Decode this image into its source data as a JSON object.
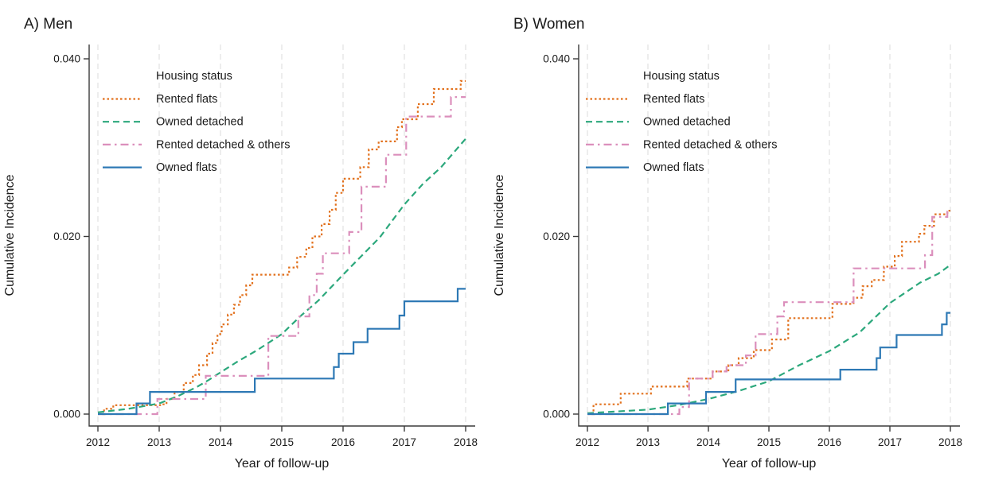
{
  "figure": {
    "background": "#ffffff",
    "axis_color": "#3a3a3a",
    "grid_color": "#e3e3e3",
    "text_color": "#1a1a1a"
  },
  "chart_data": [
    {
      "type": "line",
      "title": "A) Men",
      "xlabel": "Year of follow-up",
      "ylabel": "Cumulative Incidence",
      "xlim": [
        2012,
        2018
      ],
      "ylim": [
        0,
        0.04
      ],
      "x_ticks": [
        2012,
        2013,
        2014,
        2015,
        2016,
        2017,
        2018
      ],
      "y_tick_values": [
        0,
        0.02,
        0.04
      ],
      "y_tick_labels": [
        "0.000",
        "0.020",
        "0.040"
      ],
      "grid": "vertical-dashed",
      "legend_title": "Housing status",
      "legend_position": "upper-left-inside",
      "series": [
        {
          "name": "Rented flats",
          "color": "#E2711D",
          "dash": "dotted",
          "step": true,
          "points": [
            [
              2012,
              0
            ],
            [
              2012.1,
              0.0006
            ],
            [
              2012.25,
              0.001
            ],
            [
              2013.05,
              0.0011
            ],
            [
              2013.12,
              0.0017
            ],
            [
              2013.25,
              0.0025
            ],
            [
              2013.4,
              0.0035
            ],
            [
              2013.55,
              0.0044
            ],
            [
              2013.65,
              0.0055
            ],
            [
              2013.78,
              0.0068
            ],
            [
              2013.87,
              0.008
            ],
            [
              2013.95,
              0.009
            ],
            [
              2014.02,
              0.0101
            ],
            [
              2014.12,
              0.0112
            ],
            [
              2014.22,
              0.0123
            ],
            [
              2014.32,
              0.0134
            ],
            [
              2014.42,
              0.0145
            ],
            [
              2014.52,
              0.0157
            ],
            [
              2015.12,
              0.0165
            ],
            [
              2015.25,
              0.0177
            ],
            [
              2015.4,
              0.0187
            ],
            [
              2015.5,
              0.02
            ],
            [
              2015.65,
              0.0214
            ],
            [
              2015.78,
              0.023
            ],
            [
              2015.88,
              0.0249
            ],
            [
              2016.0,
              0.0265
            ],
            [
              2016.28,
              0.0278
            ],
            [
              2016.42,
              0.0298
            ],
            [
              2016.58,
              0.0307
            ],
            [
              2016.88,
              0.0323
            ],
            [
              2016.96,
              0.0332
            ],
            [
              2017.22,
              0.0349
            ],
            [
              2017.48,
              0.0366
            ],
            [
              2017.92,
              0.0375
            ],
            [
              2018,
              0.0375
            ]
          ]
        },
        {
          "name": "Owned detached",
          "color": "#2CA87C",
          "dash": "dashed",
          "step": false,
          "points": [
            [
              2012,
              0.0002
            ],
            [
              2012.5,
              0.0006
            ],
            [
              2013,
              0.0012
            ],
            [
              2013.3,
              0.002
            ],
            [
              2013.6,
              0.003
            ],
            [
              2013.8,
              0.0038
            ],
            [
              2014,
              0.0047
            ],
            [
              2014.3,
              0.006
            ],
            [
              2014.6,
              0.0072
            ],
            [
              2015,
              0.009
            ],
            [
              2015.3,
              0.011
            ],
            [
              2015.6,
              0.0128
            ],
            [
              2016,
              0.0157
            ],
            [
              2016.3,
              0.0178
            ],
            [
              2016.6,
              0.0199
            ],
            [
              2017,
              0.0236
            ],
            [
              2017.3,
              0.0259
            ],
            [
              2017.6,
              0.0278
            ],
            [
              2018,
              0.031
            ]
          ]
        },
        {
          "name": "Rented detached & others",
          "color": "#DB8FBC",
          "dash": "dashdot",
          "step": true,
          "points": [
            [
              2012,
              0
            ],
            [
              2012.97,
              0.0017
            ],
            [
              2013.76,
              0.0043
            ],
            [
              2014.78,
              0.0088
            ],
            [
              2015.27,
              0.011
            ],
            [
              2015.45,
              0.0134
            ],
            [
              2015.57,
              0.0158
            ],
            [
              2015.67,
              0.0181
            ],
            [
              2016.1,
              0.0205
            ],
            [
              2016.3,
              0.0256
            ],
            [
              2016.7,
              0.0292
            ],
            [
              2017.03,
              0.0335
            ],
            [
              2017.76,
              0.0357
            ],
            [
              2018,
              0.0357
            ]
          ]
        },
        {
          "name": "Owned flats",
          "color": "#2E79B5",
          "dash": "solid",
          "step": true,
          "points": [
            [
              2012,
              0
            ],
            [
              2012.63,
              0.0012
            ],
            [
              2012.85,
              0.0025
            ],
            [
              2014.56,
              0.004
            ],
            [
              2015.85,
              0.0053
            ],
            [
              2015.93,
              0.0068
            ],
            [
              2016.17,
              0.0081
            ],
            [
              2016.4,
              0.0096
            ],
            [
              2016.92,
              0.0111
            ],
            [
              2017.0,
              0.0127
            ],
            [
              2017.87,
              0.0141
            ],
            [
              2018,
              0.0141
            ]
          ]
        }
      ]
    },
    {
      "type": "line",
      "title": "B) Women",
      "xlabel": "Year of follow-up",
      "ylabel": "Cumulative Incidence",
      "xlim": [
        2012,
        2018
      ],
      "ylim": [
        0,
        0.04
      ],
      "x_ticks": [
        2012,
        2013,
        2014,
        2015,
        2016,
        2017,
        2018
      ],
      "y_tick_values": [
        0,
        0.02,
        0.04
      ],
      "y_tick_labels": [
        "0.000",
        "0.020",
        "0.040"
      ],
      "grid": "vertical-dashed",
      "legend_title": "Housing status",
      "legend_position": "upper-left-inside",
      "series": [
        {
          "name": "Rented flats",
          "color": "#E2711D",
          "dash": "dotted",
          "step": true,
          "points": [
            [
              2012,
              0
            ],
            [
              2012.1,
              0.0011
            ],
            [
              2012.55,
              0.0023
            ],
            [
              2013.05,
              0.0031
            ],
            [
              2013.65,
              0.004
            ],
            [
              2014.07,
              0.0048
            ],
            [
              2014.33,
              0.0055
            ],
            [
              2014.5,
              0.0063
            ],
            [
              2014.75,
              0.0072
            ],
            [
              2015.05,
              0.0084
            ],
            [
              2015.32,
              0.0108
            ],
            [
              2016.05,
              0.0124
            ],
            [
              2016.4,
              0.0131
            ],
            [
              2016.55,
              0.0144
            ],
            [
              2016.7,
              0.0151
            ],
            [
              2016.9,
              0.0166
            ],
            [
              2017.08,
              0.0178
            ],
            [
              2017.2,
              0.0194
            ],
            [
              2017.48,
              0.0203
            ],
            [
              2017.57,
              0.0212
            ],
            [
              2017.73,
              0.0225
            ],
            [
              2017.95,
              0.0229
            ],
            [
              2018,
              0.0229
            ]
          ]
        },
        {
          "name": "Owned detached",
          "color": "#2CA87C",
          "dash": "dashed",
          "step": false,
          "points": [
            [
              2012,
              0.0001
            ],
            [
              2012.5,
              0.0003
            ],
            [
              2013,
              0.0005
            ],
            [
              2013.5,
              0.001
            ],
            [
              2014,
              0.0017
            ],
            [
              2014.5,
              0.0026
            ],
            [
              2015,
              0.0037
            ],
            [
              2015.5,
              0.0055
            ],
            [
              2016,
              0.0071
            ],
            [
              2016.5,
              0.0092
            ],
            [
              2017,
              0.0125
            ],
            [
              2017.5,
              0.0148
            ],
            [
              2017.8,
              0.0158
            ],
            [
              2018,
              0.0168
            ]
          ]
        },
        {
          "name": "Rented detached & others",
          "color": "#DB8FBC",
          "dash": "dashdot",
          "step": true,
          "points": [
            [
              2012,
              0
            ],
            [
              2013.52,
              0.0008
            ],
            [
              2013.68,
              0.004
            ],
            [
              2014.07,
              0.0048
            ],
            [
              2014.3,
              0.0055
            ],
            [
              2014.62,
              0.0066
            ],
            [
              2014.78,
              0.009
            ],
            [
              2015.14,
              0.011
            ],
            [
              2015.25,
              0.0126
            ],
            [
              2016.4,
              0.0164
            ],
            [
              2017.58,
              0.0179
            ],
            [
              2017.7,
              0.0222
            ],
            [
              2017.95,
              0.0228
            ],
            [
              2018,
              0.0228
            ]
          ]
        },
        {
          "name": "Owned flats",
          "color": "#2E79B5",
          "dash": "solid",
          "step": true,
          "points": [
            [
              2012,
              0
            ],
            [
              2013.33,
              0.0012
            ],
            [
              2013.96,
              0.0025
            ],
            [
              2014.45,
              0.0039
            ],
            [
              2016.18,
              0.005
            ],
            [
              2016.78,
              0.0063
            ],
            [
              2016.84,
              0.0075
            ],
            [
              2017.11,
              0.0089
            ],
            [
              2017.86,
              0.0101
            ],
            [
              2017.94,
              0.0114
            ],
            [
              2018,
              0.0114
            ]
          ]
        }
      ]
    }
  ]
}
